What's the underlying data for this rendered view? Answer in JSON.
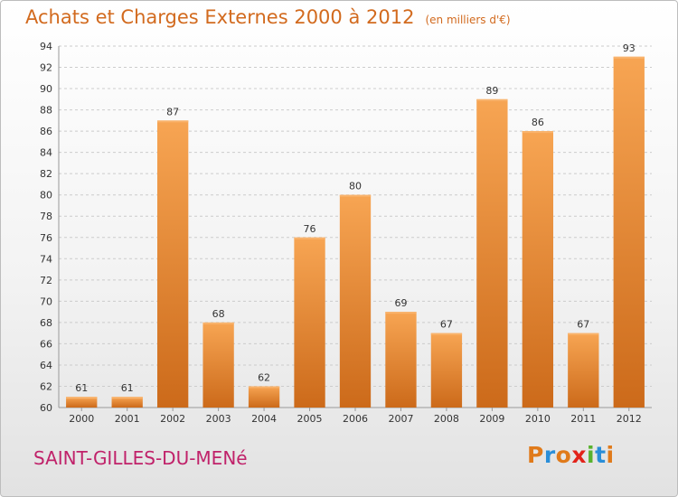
{
  "header": {
    "title": "Achats et Charges Externes 2000 à 2012",
    "unit": "(en milliers d'€)"
  },
  "footer": {
    "town": "SAINT-GILLES-DU-MENé",
    "logo": {
      "letters": [
        "P",
        "r",
        "o",
        "x",
        "i",
        "t",
        "i"
      ],
      "colors": [
        "#e07a1a",
        "#2a8ed8",
        "#e07a1a",
        "#e2231a",
        "#58b22e",
        "#2a8ed8",
        "#e07a1a"
      ]
    }
  },
  "colors": {
    "bar_top": "#f7a553",
    "bar_bottom": "#cc6a1a",
    "grid": "#cccccc",
    "text": "#333333",
    "title": "#d26a1e",
    "town": "#c0226a"
  },
  "chart_data": {
    "type": "bar",
    "title": "Achats et Charges Externes 2000 à 2012",
    "subtitle": "(en milliers d'€)",
    "categories": [
      "2000",
      "2001",
      "2002",
      "2003",
      "2004",
      "2005",
      "2006",
      "2007",
      "2008",
      "2009",
      "2010",
      "2011",
      "2012"
    ],
    "values": [
      61,
      61,
      87,
      68,
      62,
      76,
      80,
      69,
      67,
      89,
      86,
      67,
      93
    ],
    "ylim": [
      60,
      94
    ],
    "yticks": [
      60,
      62,
      64,
      66,
      68,
      70,
      72,
      74,
      76,
      78,
      80,
      82,
      84,
      86,
      88,
      90,
      92,
      94
    ],
    "grid": true,
    "data_labels": true
  }
}
